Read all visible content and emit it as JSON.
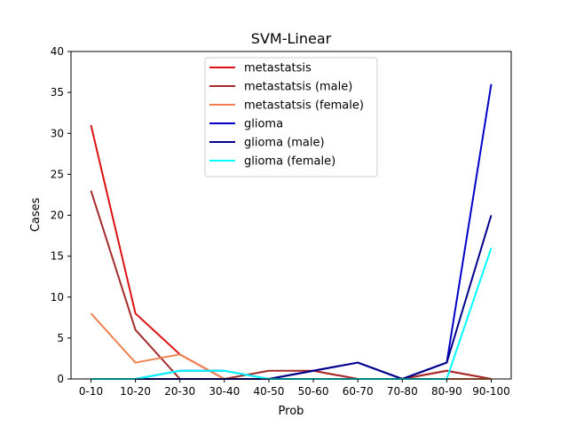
{
  "chart_data": {
    "type": "line",
    "title": "SVM-Linear",
    "xlabel": "Prob",
    "ylabel": "Cases",
    "categories": [
      "0-10",
      "10-20",
      "20-30",
      "30-40",
      "40-50",
      "50-60",
      "60-70",
      "70-80",
      "80-90",
      "90-100"
    ],
    "ylim": [
      0,
      40
    ],
    "yticks": [
      0,
      5,
      10,
      15,
      20,
      25,
      30,
      35,
      40
    ],
    "grid": false,
    "legend_position": "top-center",
    "series": [
      {
        "name": "metastatsis",
        "color": "#dd1111",
        "values": [
          31,
          8,
          3,
          0,
          0,
          1,
          0,
          0,
          1,
          0
        ]
      },
      {
        "name": "metastatsis (male)",
        "color": "#a52a2a",
        "values": [
          23,
          6,
          0,
          0,
          1,
          1,
          0,
          0,
          1,
          0
        ]
      },
      {
        "name": "metastatsis (female)",
        "color": "#f08050",
        "values": [
          8,
          2,
          3,
          0,
          0,
          0,
          0,
          0,
          0,
          0
        ]
      },
      {
        "name": "glioma",
        "color": "#0000c8",
        "values": [
          0,
          0,
          1,
          1,
          0,
          1,
          2,
          0,
          2,
          36
        ]
      },
      {
        "name": "glioma (male)",
        "color": "#00008b",
        "values": [
          0,
          0,
          0,
          0,
          0,
          1,
          2,
          0,
          2,
          20
        ]
      },
      {
        "name": "glioma (female)",
        "color": "#00ffff",
        "values": [
          0,
          0,
          1,
          1,
          0,
          0,
          0,
          0,
          0,
          16
        ]
      }
    ]
  }
}
